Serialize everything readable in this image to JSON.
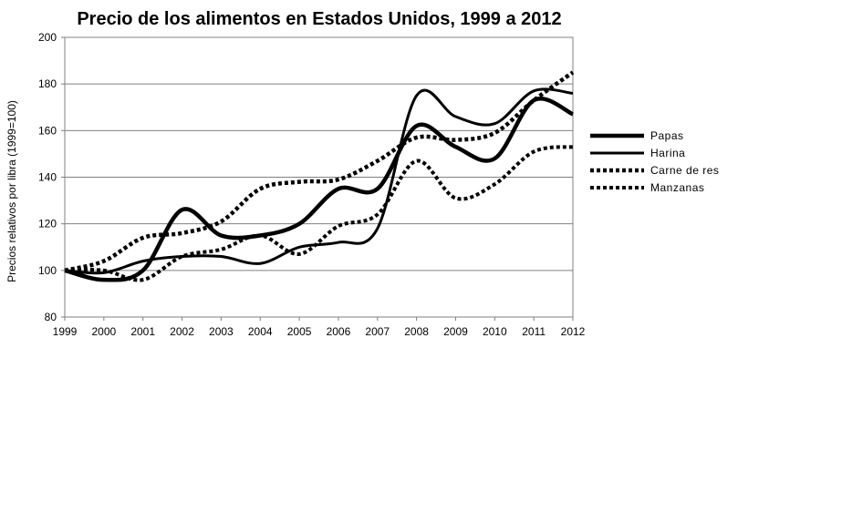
{
  "chart_data": {
    "type": "line",
    "title": "Precio de los alimentos en Estados Unidos, 1999 a 2012",
    "xlabel": "",
    "ylabel": "Precios relativos por libra (1999=100)",
    "x": [
      1999,
      2000,
      2001,
      2002,
      2003,
      2004,
      2005,
      2006,
      2007,
      2008,
      2009,
      2010,
      2011,
      2012
    ],
    "xlim": [
      1999,
      2012
    ],
    "ylim": [
      80,
      200
    ],
    "yticks": [
      80,
      100,
      120,
      140,
      160,
      180,
      200
    ],
    "grid": "horizontal",
    "legend_position": "right",
    "series": [
      {
        "name": "Papas",
        "style": "solid-thick",
        "values": [
          100,
          96,
          100,
          126,
          115,
          115,
          120,
          135,
          135,
          162,
          153,
          148,
          173,
          167
        ]
      },
      {
        "name": "Harina",
        "style": "solid",
        "values": [
          100,
          99,
          104,
          106,
          106,
          103,
          110,
          112,
          118,
          175,
          166,
          163,
          177,
          176
        ]
      },
      {
        "name": "Carne de res",
        "style": "dotted-thick",
        "values": [
          100,
          104,
          114,
          116,
          121,
          135,
          138,
          139,
          147,
          157,
          156,
          159,
          173,
          185
        ]
      },
      {
        "name": "Manzanas",
        "style": "dotted",
        "values": [
          100,
          100,
          96,
          106,
          109,
          115,
          107,
          119,
          124,
          147,
          131,
          137,
          151,
          153
        ]
      }
    ]
  }
}
